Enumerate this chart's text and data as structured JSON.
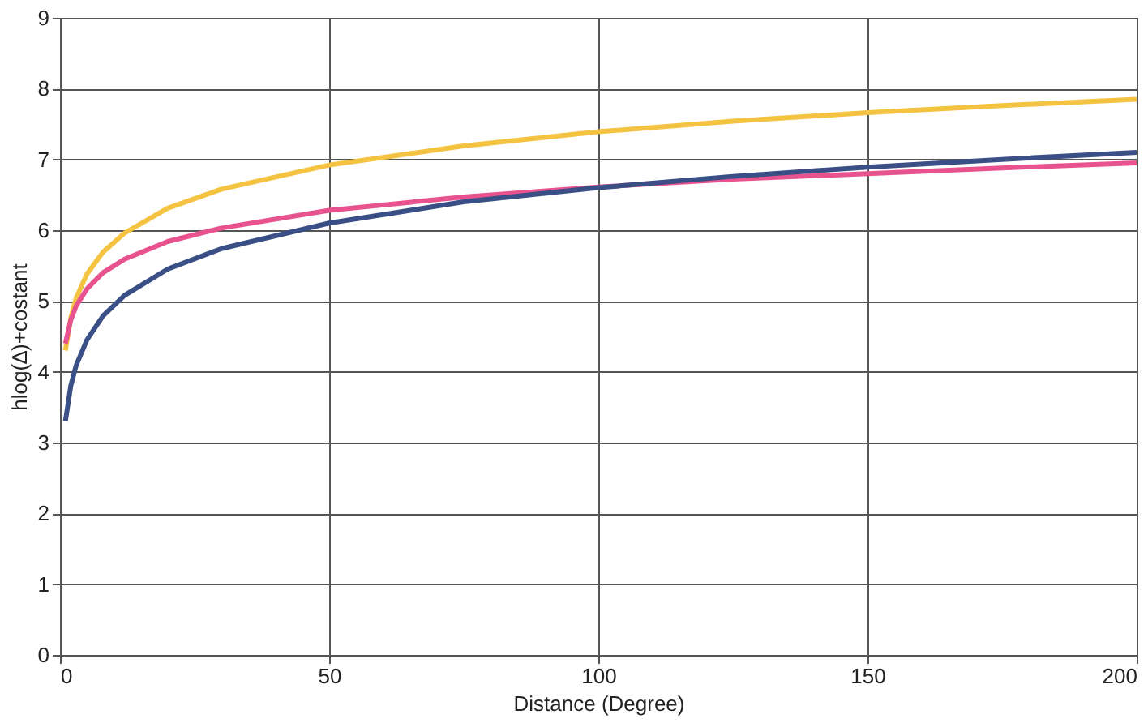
{
  "chart_data": {
    "type": "line",
    "xlabel": "Distance (Degree)",
    "ylabel": "hlog(∆)+costant",
    "x": [
      1,
      2,
      3,
      5,
      8,
      12,
      20,
      30,
      50,
      75,
      100,
      125,
      150,
      175,
      200
    ],
    "series": [
      {
        "color": "#f5c342",
        "values": [
          4.3,
          4.76,
          5.04,
          5.38,
          5.69,
          5.96,
          6.31,
          6.58,
          6.92,
          7.19,
          7.39,
          7.54,
          7.66,
          7.76,
          7.85
        ]
      },
      {
        "color": "#e8538f",
        "values": [
          4.4,
          4.73,
          4.93,
          5.17,
          5.4,
          5.59,
          5.84,
          6.03,
          6.28,
          6.47,
          6.61,
          6.72,
          6.8,
          6.88,
          6.95
        ]
      },
      {
        "color": "#3a4f86",
        "values": [
          3.3,
          3.8,
          4.09,
          4.45,
          4.79,
          5.08,
          5.45,
          5.74,
          6.1,
          6.4,
          6.6,
          6.76,
          6.89,
          7.0,
          7.1
        ]
      }
    ],
    "xlim": [
      0,
      200
    ],
    "xticks": [
      0,
      50,
      100,
      150,
      200
    ],
    "ylim": [
      0,
      9
    ],
    "yticks": [
      0,
      1,
      2,
      3,
      4,
      5,
      6,
      7,
      8,
      9
    ],
    "grid": true,
    "marker": "none",
    "line_style": "solid"
  }
}
